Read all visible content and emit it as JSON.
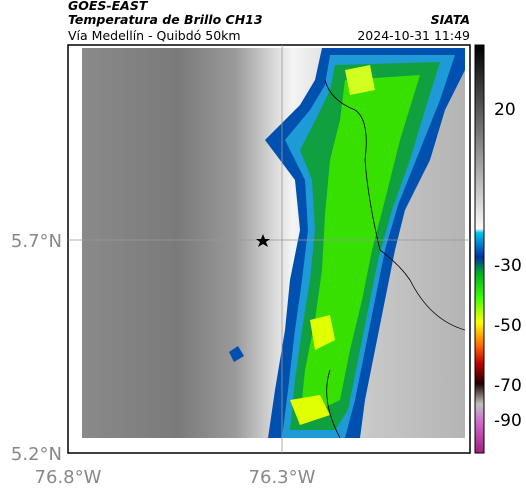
{
  "header": {
    "satellite": "GOES-EAST",
    "product": "Temperatura de Brillo CH13",
    "region": "Vía Medellín - Quibdó 50km",
    "source": "SIATA",
    "timestamp": "2024-10-31 11:49"
  },
  "axes": {
    "lat_ticks": [
      "5.7°N",
      "5.2°N"
    ],
    "lon_ticks": [
      "76.8°W",
      "76.3°W"
    ]
  },
  "colorbar": {
    "ticks": [
      20,
      -30,
      -50,
      -70,
      -90
    ]
  }
}
